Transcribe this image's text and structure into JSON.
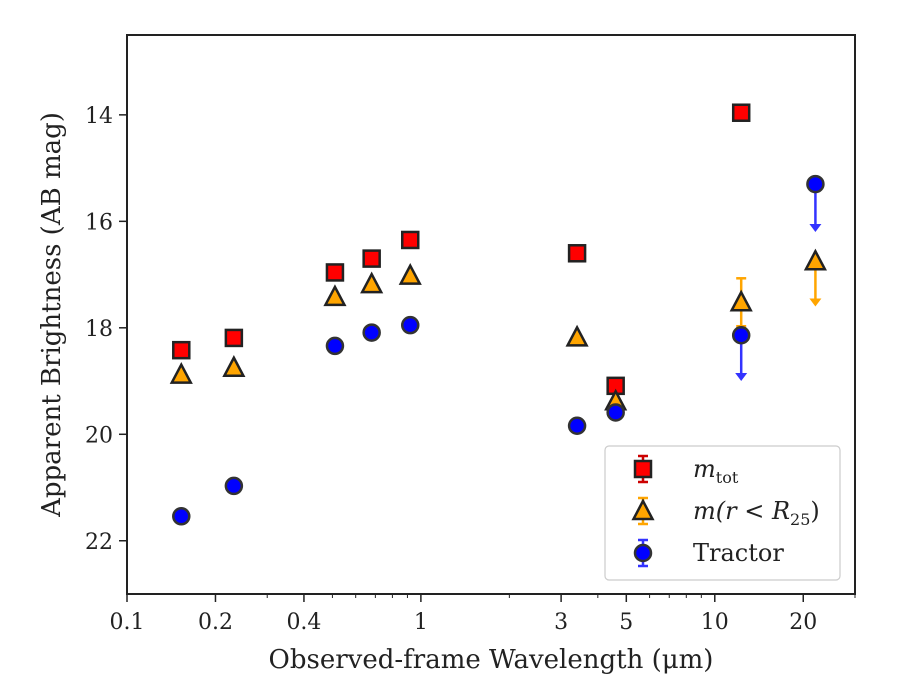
{
  "chart_data": {
    "type": "scatter",
    "title": "",
    "xlabel": "Observed-frame Wavelength (μm)",
    "ylabel": "Apparent Brightness (AB mag)",
    "xscale": "log",
    "xlim": [
      0.1,
      30
    ],
    "ylim": [
      23,
      12.5
    ],
    "y_inverted": true,
    "x_ticks": [
      {
        "value": 0.1,
        "label": "0.1"
      },
      {
        "value": 0.2,
        "label": "0.2"
      },
      {
        "value": 0.4,
        "label": "0.4"
      },
      {
        "value": 1,
        "label": "1"
      },
      {
        "value": 3,
        "label": "3"
      },
      {
        "value": 5,
        "label": "5"
      },
      {
        "value": 10,
        "label": "10"
      },
      {
        "value": 20,
        "label": "20"
      }
    ],
    "y_ticks": [
      {
        "value": 14,
        "label": "14"
      },
      {
        "value": 16,
        "label": "16"
      },
      {
        "value": 18,
        "label": "18"
      },
      {
        "value": 20,
        "label": "20"
      },
      {
        "value": 22,
        "label": "22"
      }
    ],
    "grid": false,
    "legend_position": "lower-right",
    "series": [
      {
        "name": "m_tot",
        "legend_main": "m",
        "legend_sub": "tot",
        "marker": "square",
        "color": "#ff0000",
        "edge_color": "#222222",
        "errorbar_color": "#cc0000",
        "points": [
          {
            "x": 0.153,
            "y": 18.42
          },
          {
            "x": 0.231,
            "y": 18.19
          },
          {
            "x": 0.51,
            "y": 16.96
          },
          {
            "x": 0.68,
            "y": 16.7
          },
          {
            "x": 0.92,
            "y": 16.35
          },
          {
            "x": 3.4,
            "y": 16.6
          },
          {
            "x": 4.6,
            "y": 19.09
          },
          {
            "x": 12.3,
            "y": 13.96
          }
        ]
      },
      {
        "name": "m(r < R25)",
        "legend_main": "m(r < R",
        "legend_sub": "25",
        "legend_tail": ")",
        "marker": "triangle",
        "color": "#ffa500",
        "edge_color": "#222222",
        "errorbar_color": "#ffa500",
        "points": [
          {
            "x": 0.153,
            "y": 18.88
          },
          {
            "x": 0.231,
            "y": 18.75
          },
          {
            "x": 0.51,
            "y": 17.42
          },
          {
            "x": 0.68,
            "y": 17.18
          },
          {
            "x": 0.92,
            "y": 17.02
          },
          {
            "x": 3.4,
            "y": 18.18
          },
          {
            "x": 4.6,
            "y": 19.38
          },
          {
            "x": 12.3,
            "y": 17.52,
            "err_low": 0.45,
            "err_high": 0.45
          },
          {
            "x": 22.0,
            "y": 16.75,
            "upper_limit": true,
            "arrow_to": 17.6
          }
        ]
      },
      {
        "name": "Tractor",
        "legend_main": "Tractor",
        "marker": "circle",
        "color": "#0000ff",
        "edge_color": "#333333",
        "errorbar_color": "#3333ff",
        "points": [
          {
            "x": 0.153,
            "y": 21.54
          },
          {
            "x": 0.231,
            "y": 20.97
          },
          {
            "x": 0.51,
            "y": 18.34
          },
          {
            "x": 0.68,
            "y": 18.09
          },
          {
            "x": 0.92,
            "y": 17.95
          },
          {
            "x": 3.4,
            "y": 19.84
          },
          {
            "x": 4.6,
            "y": 19.59
          },
          {
            "x": 12.3,
            "y": 18.14,
            "upper_limit": true,
            "arrow_to": 19.0
          },
          {
            "x": 22.0,
            "y": 15.3,
            "upper_limit": true,
            "arrow_to": 16.2
          }
        ]
      }
    ]
  }
}
